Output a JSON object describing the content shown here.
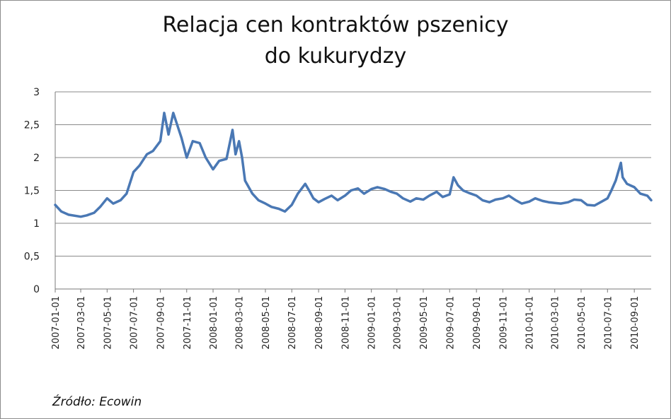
{
  "chart_data": {
    "type": "line",
    "title": "Relacja cen kontraktów pszenicy do kukurydzy",
    "title_lines": [
      "Relacja cen kontraktów pszenicy",
      "do kukurydzy"
    ],
    "source": "Źródło: Ecowin",
    "xlabel": "",
    "ylabel": "",
    "ylim": [
      0,
      3
    ],
    "y_ticks": [
      "0",
      "0,5",
      "1",
      "1,5",
      "2",
      "2,5",
      "3"
    ],
    "x_ticks": [
      "2007-01-01",
      "2007-03-01",
      "2007-05-01",
      "2007-07-01",
      "2007-09-01",
      "2007-11-01",
      "2008-01-01",
      "2008-03-01",
      "2008-05-01",
      "2008-07-01",
      "2008-09-01",
      "2008-11-01",
      "2009-01-01",
      "2009-03-01",
      "2009-05-01",
      "2009-07-01",
      "2009-09-01",
      "2009-11-01",
      "2010-01-01",
      "2010-03-01",
      "2010-05-01",
      "2010-07-01",
      "2010-09-01"
    ],
    "xlim": [
      "2007-01-01",
      "2010-10-10"
    ],
    "grid": true,
    "line_color": "#4a78b4",
    "series": [
      {
        "x": [
          "2007-01-01",
          "2007-01-15",
          "2007-02-01",
          "2007-03-01",
          "2007-03-15",
          "2007-04-01",
          "2007-04-15",
          "2007-05-01",
          "2007-05-15",
          "2007-06-01",
          "2007-06-15",
          "2007-07-01",
          "2007-07-15",
          "2007-08-01",
          "2007-08-15",
          "2007-09-01",
          "2007-09-10",
          "2007-09-20",
          "2007-10-01",
          "2007-10-10",
          "2007-10-20",
          "2007-11-01",
          "2007-11-15",
          "2007-12-01",
          "2007-12-15",
          "2008-01-01",
          "2008-01-15",
          "2008-02-01",
          "2008-02-15",
          "2008-02-22",
          "2008-03-01",
          "2008-03-08",
          "2008-03-15",
          "2008-04-01",
          "2008-04-15",
          "2008-05-01",
          "2008-05-15",
          "2008-06-01",
          "2008-06-15",
          "2008-07-01",
          "2008-07-15",
          "2008-08-01",
          "2008-08-10",
          "2008-08-20",
          "2008-09-01",
          "2008-09-15",
          "2008-10-01",
          "2008-10-15",
          "2008-11-01",
          "2008-11-15",
          "2008-12-01",
          "2008-12-15",
          "2009-01-01",
          "2009-01-15",
          "2009-02-01",
          "2009-02-15",
          "2009-03-01",
          "2009-03-15",
          "2009-04-01",
          "2009-04-15",
          "2009-05-01",
          "2009-05-15",
          "2009-06-01",
          "2009-06-15",
          "2009-07-01",
          "2009-07-10",
          "2009-07-20",
          "2009-08-01",
          "2009-08-15",
          "2009-09-01",
          "2009-09-15",
          "2009-10-01",
          "2009-10-15",
          "2009-11-01",
          "2009-11-15",
          "2009-12-01",
          "2009-12-15",
          "2010-01-01",
          "2010-01-15",
          "2010-02-01",
          "2010-02-15",
          "2010-03-01",
          "2010-03-15",
          "2010-04-01",
          "2010-04-15",
          "2010-05-01",
          "2010-05-15",
          "2010-06-01",
          "2010-06-15",
          "2010-07-01",
          "2010-07-10",
          "2010-07-20",
          "2010-08-01",
          "2010-08-05",
          "2010-08-15",
          "2010-09-01",
          "2010-09-15",
          "2010-10-01",
          "2010-10-10"
        ],
        "values": [
          1.28,
          1.18,
          1.13,
          1.1,
          1.12,
          1.16,
          1.25,
          1.38,
          1.3,
          1.35,
          1.45,
          1.78,
          1.88,
          2.05,
          2.1,
          2.25,
          2.68,
          2.35,
          2.68,
          2.5,
          2.3,
          2.0,
          2.25,
          2.22,
          2.0,
          1.82,
          1.95,
          1.98,
          2.42,
          2.05,
          2.25,
          2.0,
          1.65,
          1.45,
          1.35,
          1.3,
          1.25,
          1.22,
          1.18,
          1.28,
          1.45,
          1.6,
          1.5,
          1.38,
          1.32,
          1.37,
          1.42,
          1.35,
          1.42,
          1.5,
          1.53,
          1.45,
          1.52,
          1.55,
          1.52,
          1.48,
          1.45,
          1.38,
          1.33,
          1.38,
          1.36,
          1.42,
          1.48,
          1.4,
          1.44,
          1.7,
          1.58,
          1.5,
          1.46,
          1.42,
          1.35,
          1.32,
          1.36,
          1.38,
          1.42,
          1.35,
          1.3,
          1.33,
          1.38,
          1.34,
          1.32,
          1.31,
          1.3,
          1.32,
          1.36,
          1.35,
          1.28,
          1.27,
          1.32,
          1.38,
          1.5,
          1.65,
          1.92,
          1.7,
          1.6,
          1.55,
          1.45,
          1.42,
          1.35
        ]
      }
    ]
  }
}
